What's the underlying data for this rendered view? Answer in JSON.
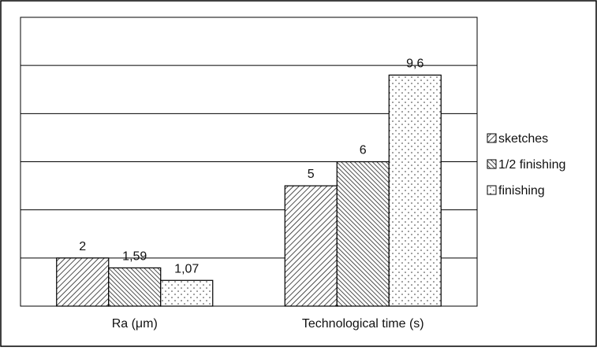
{
  "chart_data": {
    "type": "bar",
    "title": "",
    "xlabel": "",
    "ylabel": "",
    "ylim": [
      0,
      12
    ],
    "grid": true,
    "legend_position": "right",
    "categories": [
      "Ra (μm)",
      "Technological time (s)"
    ],
    "series": [
      {
        "name": "sketches",
        "values": [
          2,
          5
        ],
        "labels": [
          "2",
          "5"
        ],
        "pattern": "diag-left"
      },
      {
        "name": "1/2 finishing",
        "values": [
          1.59,
          6
        ],
        "labels": [
          "1,59",
          "6"
        ],
        "pattern": "diag-right"
      },
      {
        "name": "finishing",
        "values": [
          1.07,
          9.6
        ],
        "labels": [
          "1,07",
          "9,6"
        ],
        "pattern": "dots"
      }
    ]
  }
}
